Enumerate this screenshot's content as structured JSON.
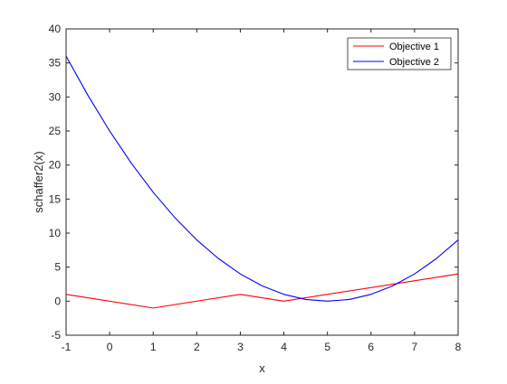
{
  "chart_data": {
    "type": "line",
    "title": "",
    "xlabel": "x",
    "ylabel": "schaffer2(x)",
    "xlim": [
      -1,
      8
    ],
    "ylim": [
      -5,
      40
    ],
    "xticks": [
      "-1",
      "0",
      "1",
      "2",
      "3",
      "4",
      "5",
      "6",
      "7",
      "8"
    ],
    "yticks": [
      "-5",
      "0",
      "5",
      "10",
      "15",
      "20",
      "25",
      "30",
      "35",
      "40"
    ],
    "grid": false,
    "legend_position": "top-right",
    "series": [
      {
        "name": "Objective 1",
        "color": "#ff0000",
        "x": [
          -1,
          1,
          3,
          4,
          8
        ],
        "y": [
          1,
          -1,
          1,
          0,
          4
        ]
      },
      {
        "name": "Objective 2",
        "color": "#0000ff",
        "x": [
          -1,
          -0.5,
          0,
          0.5,
          1,
          1.5,
          2,
          2.5,
          3,
          3.5,
          4,
          4.5,
          5,
          5.5,
          6,
          6.5,
          7,
          7.5,
          8
        ],
        "y": [
          36,
          30.25,
          25,
          20.25,
          16,
          12.25,
          9,
          6.25,
          4,
          2.25,
          1,
          0.25,
          0,
          0.25,
          1,
          2.25,
          4,
          6.25,
          9
        ]
      }
    ]
  }
}
